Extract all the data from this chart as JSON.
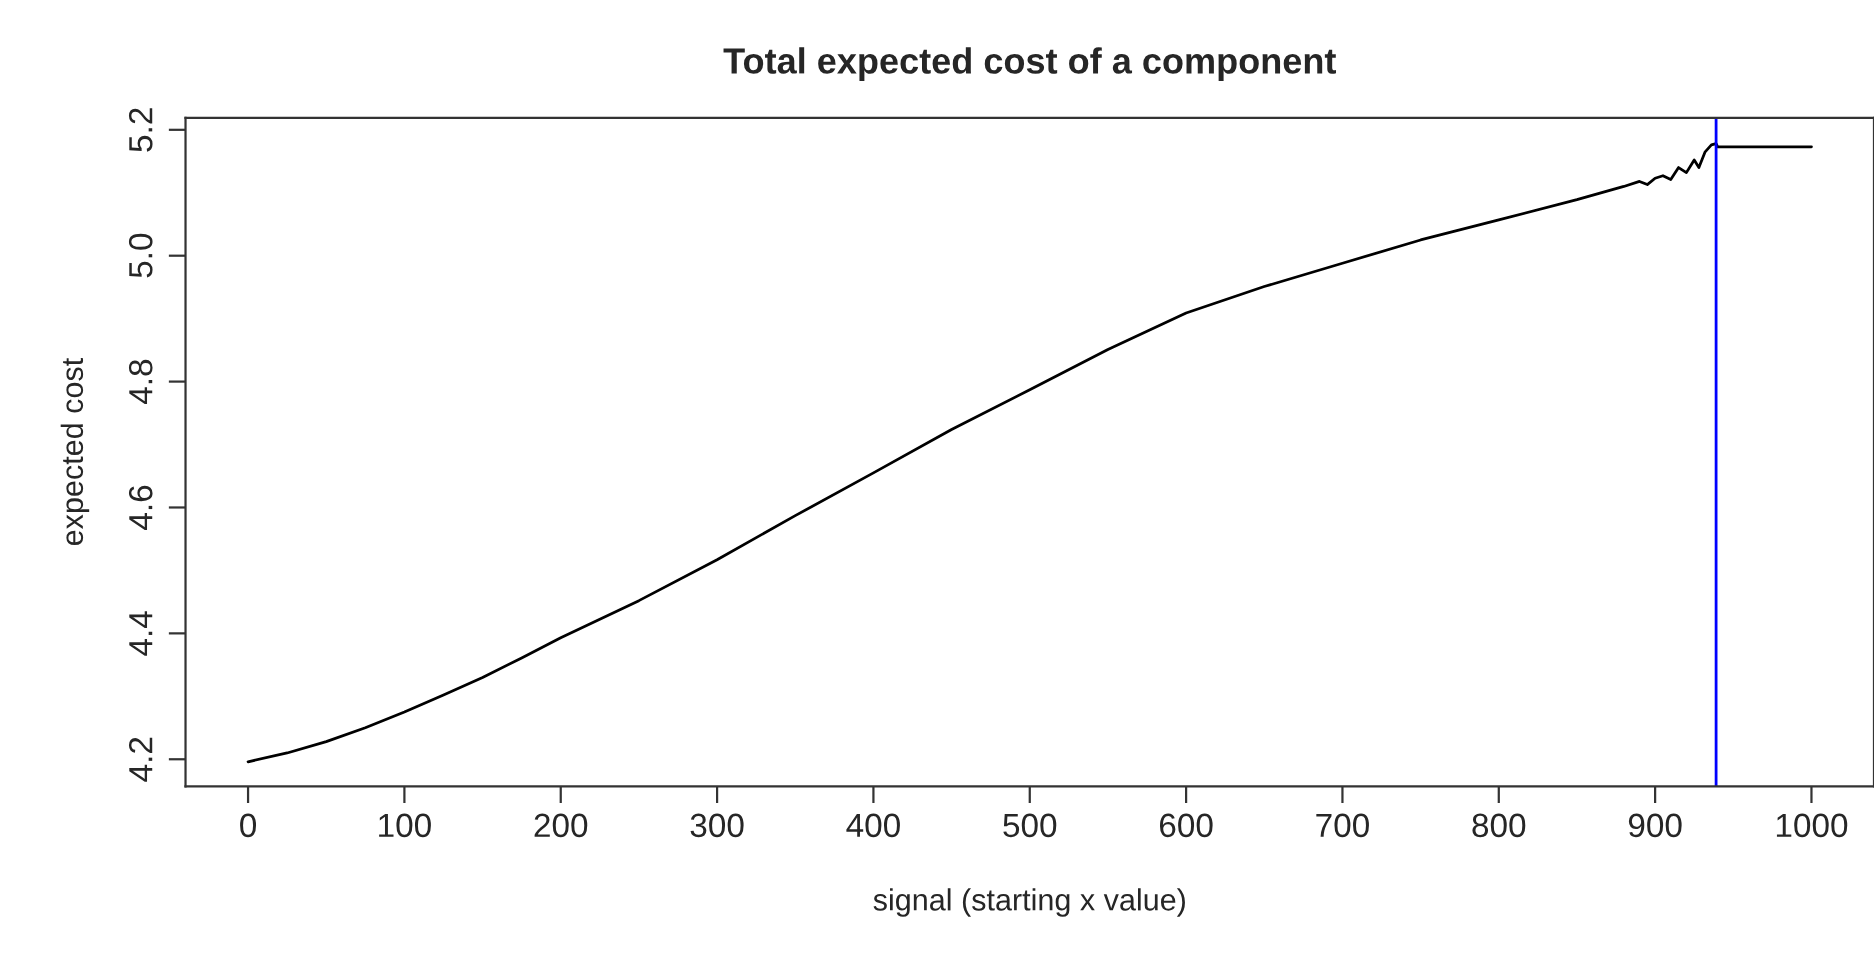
{
  "chart_data": {
    "type": "line",
    "title": "Total expected cost of a component",
    "xlabel": "signal (starting x value)",
    "ylabel": "expected cost",
    "series": [
      {
        "color": "#000000",
        "x": [
          0,
          25,
          50,
          75,
          100,
          125,
          150,
          175,
          200,
          250,
          300,
          350,
          400,
          450,
          500,
          550,
          600,
          650,
          700,
          750,
          800,
          850,
          880,
          890,
          895,
          900,
          905,
          910,
          915,
          920,
          925,
          928,
          932,
          936,
          939,
          940,
          1000
        ],
        "values": [
          4.196,
          4.21,
          4.228,
          4.25,
          4.275,
          4.302,
          4.33,
          4.361,
          4.393,
          4.452,
          4.517,
          4.587,
          4.655,
          4.724,
          4.787,
          4.851,
          4.909,
          4.951,
          4.988,
          5.025,
          5.057,
          5.089,
          5.11,
          5.118,
          5.113,
          5.123,
          5.127,
          5.121,
          5.14,
          5.132,
          5.152,
          5.14,
          5.165,
          5.176,
          5.178,
          5.173,
          5.173
        ]
      }
    ],
    "ref_lines": [
      {
        "axis": "x",
        "value": 939,
        "color": "#0000ff"
      }
    ],
    "xlim": [
      -40,
      1040
    ],
    "ylim": [
      4.157,
      5.219
    ],
    "xticks": [
      0,
      100,
      200,
      300,
      400,
      500,
      600,
      700,
      800,
      900,
      1000
    ],
    "yticks": [
      4.2,
      4.4,
      4.6,
      4.8,
      {
        "value": 5.0,
        "label": "5.0"
      },
      5.2
    ],
    "grid": false,
    "legend": false,
    "marker": "none",
    "line_style": "solid"
  }
}
